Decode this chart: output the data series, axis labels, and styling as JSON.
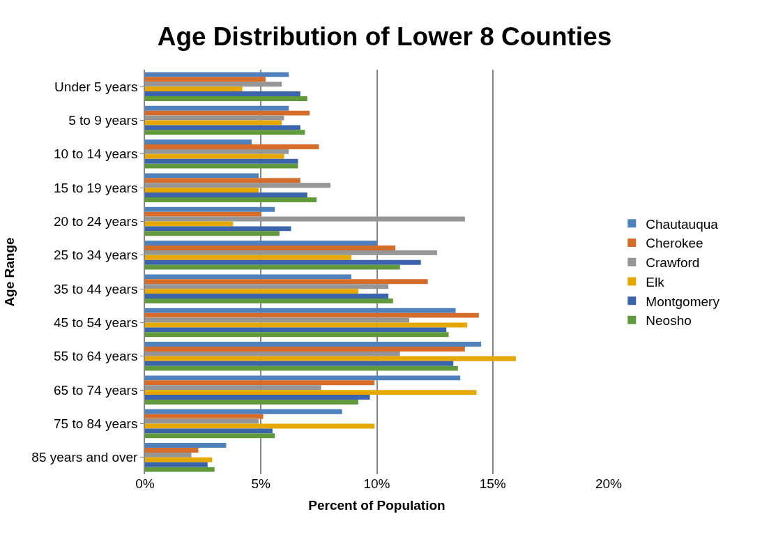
{
  "chart_data": {
    "type": "bar",
    "orientation": "horizontal",
    "title": "Age Distribution of Lower 8 Counties",
    "xlabel": "Percent of Population",
    "ylabel": "Age Range",
    "categories": [
      "Under 5 years",
      "5 to 9 years",
      "10 to 14 years",
      "15 to 19 years",
      "20 to 24 years",
      "25 to 34 years",
      "35 to 44 years",
      "45 to 54 years",
      "55 to 64 years",
      "65 to 74 years",
      "75 to 84 years",
      "85 years and over"
    ],
    "series": [
      {
        "name": "Chautauqua",
        "color": "#4f81bd",
        "values": [
          6.2,
          6.2,
          4.6,
          4.9,
          5.6,
          10.0,
          8.9,
          13.4,
          14.5,
          13.6,
          8.5,
          3.5
        ]
      },
      {
        "name": "Cherokee",
        "color": "#d66c2a",
        "values": [
          5.2,
          7.1,
          7.5,
          6.7,
          5.0,
          10.8,
          12.2,
          14.4,
          13.8,
          9.9,
          5.1,
          2.3
        ]
      },
      {
        "name": "Crawford",
        "color": "#969696",
        "values": [
          5.9,
          6.0,
          6.2,
          8.0,
          13.8,
          12.6,
          10.5,
          11.4,
          11.0,
          7.6,
          4.9,
          2.0
        ]
      },
      {
        "name": "Elk",
        "color": "#e6a800",
        "values": [
          4.2,
          5.9,
          6.0,
          4.9,
          3.8,
          8.9,
          9.2,
          13.9,
          16.0,
          14.3,
          9.9,
          2.9
        ]
      },
      {
        "name": "Montgomery",
        "color": "#3b64ad",
        "values": [
          6.7,
          6.7,
          6.6,
          7.0,
          6.3,
          11.9,
          10.5,
          13.0,
          13.3,
          9.7,
          5.5,
          2.7
        ]
      },
      {
        "name": "Neosho",
        "color": "#619a3c",
        "values": [
          7.0,
          6.9,
          6.6,
          7.4,
          5.8,
          11.0,
          10.7,
          13.1,
          13.5,
          9.2,
          5.6,
          3.0
        ]
      }
    ],
    "xlim": [
      0,
      20
    ],
    "xticks": [
      {
        "value": 0,
        "label": "0%"
      },
      {
        "value": 5,
        "label": "5%"
      },
      {
        "value": 10,
        "label": "10%"
      },
      {
        "value": 15,
        "label": "15%"
      },
      {
        "value": 20,
        "label": "20%"
      }
    ],
    "grid": "x",
    "legend": "right"
  }
}
